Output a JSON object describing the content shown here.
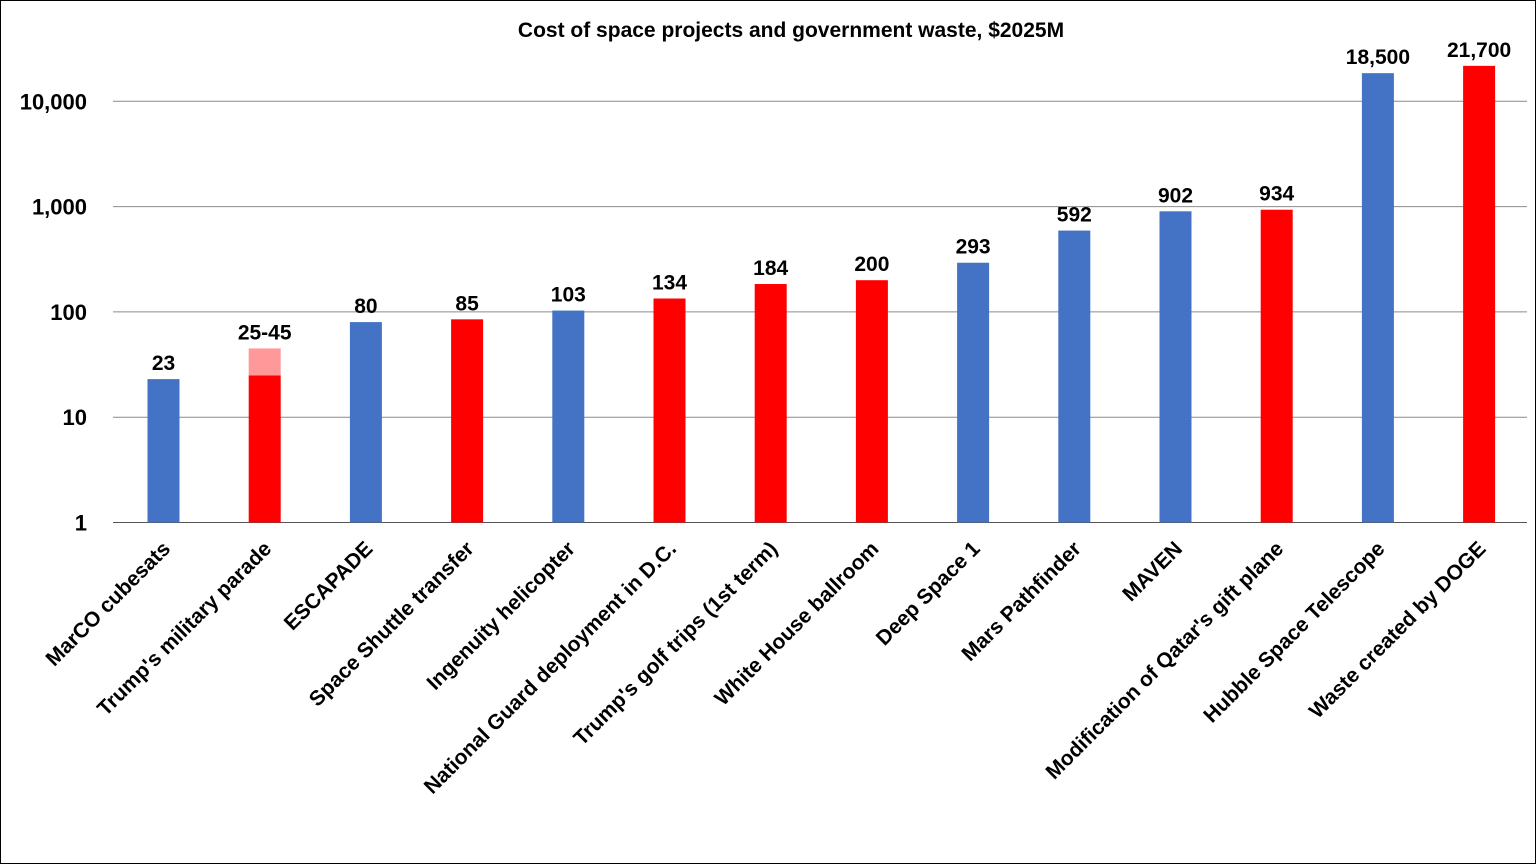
{
  "chart_data": {
    "type": "bar",
    "title": "Cost of space projects and government waste, $2025M",
    "xlabel": "",
    "ylabel": "",
    "y_scale": "log",
    "ylim": [
      1,
      30000
    ],
    "grid": true,
    "y_ticks": [
      {
        "value": 1,
        "label": "1"
      },
      {
        "value": 10,
        "label": "10"
      },
      {
        "value": 100,
        "label": "100"
      },
      {
        "value": 1000,
        "label": "1,000"
      },
      {
        "value": 10000,
        "label": "10,000"
      }
    ],
    "colors": {
      "space": "#4472C4",
      "waste": "#FF0000",
      "range": "#FF9999"
    },
    "categories": [
      "MarCO cubesats",
      "Trump's military parade",
      "ESCAPADE",
      "Space Shuttle transfer",
      "Ingenuity helicopter",
      "National Guard deployment in D.C.",
      "Trump's golf trips (1st term)",
      "White House ballroom",
      "Deep Space 1",
      "Mars Pathfinder",
      "MAVEN",
      "Modification of Qatar's gift plane",
      "Hubble Space Telescope",
      "Waste created by DOGE"
    ],
    "bars": [
      {
        "value": 23,
        "label": "23",
        "color": "#4472C4"
      },
      {
        "value": 25,
        "high": 45,
        "label": "25-45",
        "color": "#FF0000",
        "range_color": "#FF9999"
      },
      {
        "value": 80,
        "label": "80",
        "color": "#4472C4"
      },
      {
        "value": 85,
        "label": "85",
        "color": "#FF0000"
      },
      {
        "value": 103,
        "label": "103",
        "color": "#4472C4"
      },
      {
        "value": 134,
        "label": "134",
        "color": "#FF0000"
      },
      {
        "value": 184,
        "label": "184",
        "color": "#FF0000"
      },
      {
        "value": 200,
        "label": "200",
        "color": "#FF0000"
      },
      {
        "value": 293,
        "label": "293",
        "color": "#4472C4"
      },
      {
        "value": 592,
        "label": "592",
        "color": "#4472C4"
      },
      {
        "value": 902,
        "label": "902",
        "color": "#4472C4"
      },
      {
        "value": 934,
        "label": "934",
        "color": "#FF0000"
      },
      {
        "value": 18500,
        "label": "18,500",
        "color": "#4472C4"
      },
      {
        "value": 21700,
        "label": "21,700",
        "color": "#FF0000"
      }
    ]
  }
}
